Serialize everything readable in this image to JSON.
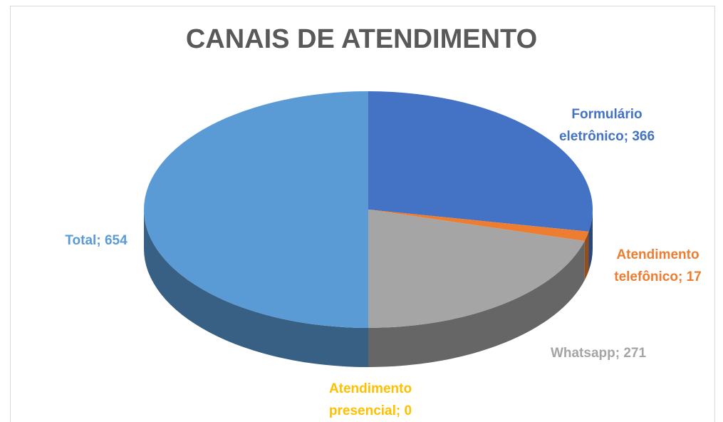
{
  "chart_data": {
    "type": "pie",
    "title": "CANAIS DE ATENDIMENTO",
    "values": [
      366,
      17,
      271,
      0,
      654
    ],
    "value_labels": [
      "Formulário eletrônico; 366",
      "Atendimento telefônico; 17",
      "Whatsapp; 271",
      "Atendimento presencial; 0",
      "Total; 654"
    ],
    "colors": [
      "#4472c4",
      "#ed7d31",
      "#a5a5a5",
      "#ffc000",
      "#5b9bd5"
    ]
  }
}
